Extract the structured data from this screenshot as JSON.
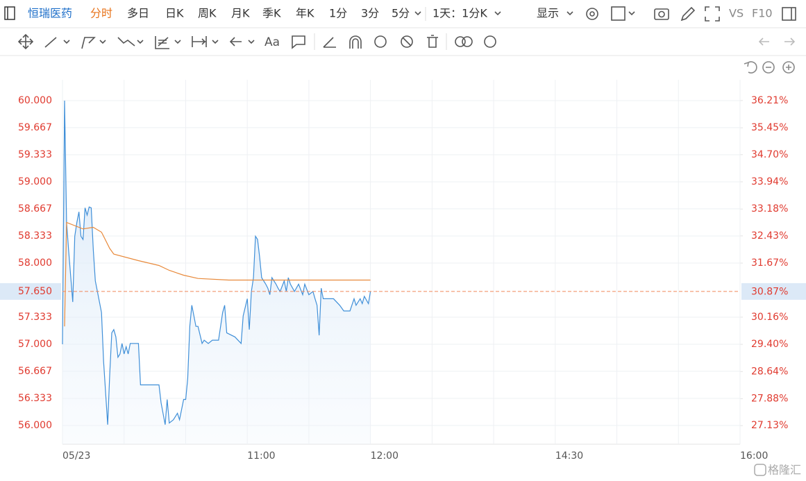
{
  "toolbar": {
    "stock_name": "恒瑞医药",
    "tabs": [
      "分时",
      "多日",
      "日K",
      "周K",
      "月K",
      "季K",
      "年K",
      "1分",
      "3分",
      "5分",
      "1天：1分K"
    ],
    "display": "显示",
    "vs": "VS",
    "f10": "F10"
  },
  "watermark": "格隆汇",
  "chart_data": {
    "type": "line",
    "xlim": [
      "09:30",
      "16:00"
    ],
    "xticks": [
      {
        "value": "09:30",
        "label": "05/23"
      },
      {
        "value": "10:00",
        "label": null
      },
      {
        "value": "10:30",
        "label": null
      },
      "11:00",
      {
        "value": "11:30",
        "label": null
      },
      "12:00",
      {
        "value": "13:30",
        "label": null
      },
      {
        "value": "14:00",
        "label": null
      },
      "14:30",
      {
        "value": "15:00",
        "label": null
      },
      {
        "value": "15:30",
        "label": null
      },
      "16:00"
    ],
    "ylim": [
      55.769,
      60.256
    ],
    "yticks": [
      {
        "value": 60,
        "label": "60.000"
      },
      {
        "value": 59.667,
        "label": "59.667"
      },
      {
        "value": 59.333,
        "label": "59.333"
      },
      {
        "value": 59,
        "label": "59.000"
      },
      {
        "value": 58.667,
        "label": "58.667"
      },
      {
        "value": 58.333,
        "label": "58.333"
      },
      {
        "value": 58,
        "label": "58.000"
      },
      {
        "value": 57.333,
        "label": "57.333"
      },
      {
        "value": 57,
        "label": "57.000"
      },
      {
        "value": 56.667,
        "label": "56.667"
      },
      {
        "value": 56.333,
        "label": "56.333"
      },
      {
        "value": 56,
        "label": "56.000"
      }
    ],
    "y2lim": [
      26.61,
      36.79
    ],
    "y2ticks": [
      {
        "value": 36.21,
        "label": "36.21%"
      },
      {
        "value": 35.45,
        "label": "35.45%"
      },
      {
        "value": 34.7,
        "label": "34.70%"
      },
      {
        "value": 33.94,
        "label": "33.94%"
      },
      {
        "value": 33.18,
        "label": "33.18%"
      },
      {
        "value": 32.43,
        "label": "32.43%"
      },
      {
        "value": 31.67,
        "label": "31.67%"
      },
      {
        "value": 30.16,
        "label": "30.16%"
      },
      {
        "value": 29.4,
        "label": "29.40%"
      },
      {
        "value": 28.64,
        "label": "28.64%"
      },
      {
        "value": 27.88,
        "label": "27.88%"
      },
      {
        "value": 27.13,
        "label": "27.13%"
      }
    ],
    "reference_line": {
      "value": 57.65,
      "label": "57.650",
      "y2_value": 30.87,
      "y2_label": "30.87%",
      "color": "#f0865a"
    },
    "grid": true,
    "series": [
      {
        "color": "#3f8fd8",
        "area": true,
        "x": [
          "09:30",
          "09:31",
          "09:32",
          "09:33",
          "09:35",
          "09:36",
          "09:37",
          "09:38",
          "09:39",
          "09:40",
          "09:41",
          "09:42",
          "09:43",
          "09:44",
          "09:45",
          "09:46",
          "09:47",
          "09:49",
          "09:50",
          "09:52",
          "09:53",
          "09:54",
          "09:55",
          "09:56",
          "09:57",
          "09:58",
          "09:59",
          "10:00",
          "10:01",
          "10:02",
          "10:03",
          "10:05",
          "10:07",
          "10:08",
          "10:17",
          "10:18",
          "10:20",
          "10:21",
          "10:22",
          "10:24",
          "10:26",
          "10:27",
          "10:29",
          "10:30",
          "10:31",
          "10:32",
          "10:33",
          "10:35",
          "10:36",
          "10:38",
          "10:39",
          "10:41",
          "10:43",
          "10:46",
          "10:48",
          "10:49",
          "10:50",
          "10:54",
          "10:57",
          "10:58",
          "11:00",
          "11:01",
          "11:02",
          "11:03",
          "11:04",
          "11:05",
          "11:06",
          "11:07",
          "11:09",
          "11:10",
          "11:11",
          "11:12",
          "11:14",
          "11:15",
          "11:16",
          "11:18",
          "11:19",
          "11:20",
          "11:21",
          "11:23",
          "11:25",
          "11:27",
          "11:28",
          "11:30",
          "11:32",
          "11:33",
          "11:34",
          "11:35",
          "11:36",
          "11:37",
          "11:42",
          "11:45",
          "11:47",
          "11:50",
          "11:52",
          "11:53",
          "11:55",
          "11:56",
          "11:57",
          "11:59",
          "12:00"
        ],
        "values": [
          57.0,
          60.0,
          58.5,
          58.15,
          57.52,
          58.33,
          58.5,
          58.63,
          58.33,
          58.29,
          58.68,
          58.59,
          58.69,
          58.68,
          58.16,
          57.78,
          57.65,
          57.39,
          56.79,
          56.01,
          56.62,
          57.14,
          57.18,
          57.09,
          56.84,
          56.88,
          57.01,
          56.88,
          56.97,
          56.88,
          57.01,
          57.01,
          57.01,
          56.5,
          56.5,
          56.28,
          56.01,
          56.32,
          56.03,
          56.07,
          56.15,
          56.07,
          56.32,
          56.32,
          56.58,
          57.22,
          57.48,
          57.22,
          57.22,
          57.01,
          57.05,
          57.01,
          57.05,
          57.05,
          57.39,
          57.48,
          57.14,
          57.09,
          57.01,
          57.35,
          57.56,
          57.18,
          57.65,
          57.82,
          58.33,
          58.29,
          58.08,
          57.82,
          57.74,
          57.69,
          57.61,
          57.82,
          57.74,
          57.69,
          57.65,
          57.78,
          57.65,
          57.82,
          57.74,
          57.65,
          57.74,
          57.61,
          57.74,
          57.61,
          57.65,
          57.56,
          57.48,
          57.11,
          57.69,
          57.56,
          57.56,
          57.48,
          57.41,
          57.41,
          57.56,
          57.48,
          57.56,
          57.5,
          57.59,
          57.5,
          57.65
        ]
      },
      {
        "color": "#e8893a",
        "area": false,
        "x": [
          "09:31",
          "09:32",
          "09:40",
          "09:45",
          "09:49",
          "09:50",
          "09:53",
          "09:55",
          "10:07",
          "10:17",
          "10:22",
          "10:29",
          "10:36",
          "10:51",
          "11:15",
          "12:00"
        ],
        "values": [
          57.22,
          58.5,
          58.42,
          58.44,
          58.38,
          58.33,
          58.18,
          58.11,
          58.03,
          57.97,
          57.91,
          57.85,
          57.81,
          57.79,
          57.79,
          57.79
        ]
      }
    ]
  }
}
